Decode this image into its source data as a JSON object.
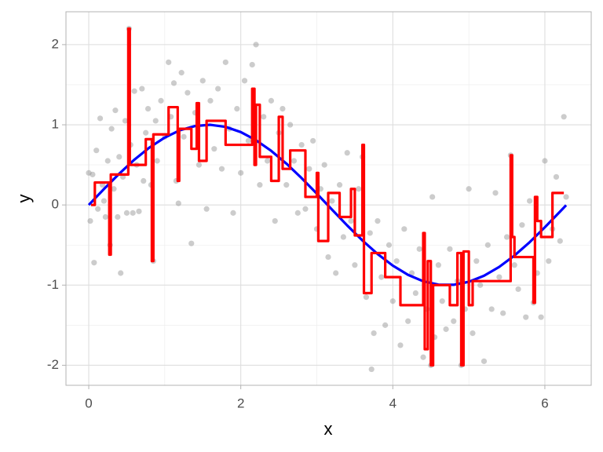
{
  "chart_data": {
    "type": "scatter",
    "x_label": "x",
    "y_label": "y",
    "xlim": [
      -0.3,
      6.61
    ],
    "ylim": [
      -2.25,
      2.41
    ],
    "xticks": [
      0,
      2,
      4,
      6
    ],
    "yticks": [
      -2,
      -1,
      0,
      1,
      2
    ],
    "grid": true,
    "series": [
      {
        "type": "scatter",
        "color": "#808080",
        "x": [
          0.0,
          0.02,
          0.05,
          0.07,
          0.1,
          0.12,
          0.15,
          0.18,
          0.2,
          0.22,
          0.25,
          0.28,
          0.3,
          0.33,
          0.35,
          0.38,
          0.4,
          0.42,
          0.45,
          0.48,
          0.5,
          0.53,
          0.55,
          0.58,
          0.6,
          0.63,
          0.66,
          0.7,
          0.72,
          0.75,
          0.78,
          0.82,
          0.85,
          0.88,
          0.9,
          0.95,
          1.0,
          1.05,
          1.08,
          1.12,
          1.15,
          1.18,
          1.22,
          1.25,
          1.3,
          1.35,
          1.4,
          1.45,
          1.5,
          1.55,
          1.6,
          1.65,
          1.7,
          1.75,
          1.8,
          1.85,
          1.9,
          1.95,
          2.0,
          2.05,
          2.1,
          2.15,
          2.2,
          2.25,
          2.3,
          2.35,
          2.4,
          2.45,
          2.5,
          2.55,
          2.6,
          2.65,
          2.7,
          2.75,
          2.8,
          2.85,
          2.9,
          2.95,
          3.0,
          3.05,
          3.1,
          3.15,
          3.2,
          3.25,
          3.3,
          3.35,
          3.4,
          3.45,
          3.5,
          3.55,
          3.6,
          3.65,
          3.7,
          3.72,
          3.75,
          3.8,
          3.85,
          3.9,
          3.95,
          4.0,
          4.05,
          4.1,
          4.15,
          4.2,
          4.25,
          4.3,
          4.35,
          4.4,
          4.45,
          4.5,
          4.52,
          4.55,
          4.6,
          4.65,
          4.7,
          4.75,
          4.8,
          4.85,
          4.9,
          4.95,
          5.0,
          5.05,
          5.1,
          5.15,
          5.2,
          5.25,
          5.3,
          5.35,
          5.4,
          5.45,
          5.5,
          5.55,
          5.6,
          5.65,
          5.7,
          5.75,
          5.8,
          5.85,
          5.9,
          5.95,
          6.0,
          6.05,
          6.1,
          6.15,
          6.2,
          6.25,
          6.28
        ],
        "values": [
          0.4,
          -0.2,
          0.38,
          -0.72,
          0.68,
          -0.05,
          1.08,
          0.25,
          0.05,
          -0.15,
          0.55,
          -0.5,
          0.95,
          0.2,
          1.18,
          -0.15,
          0.6,
          -0.85,
          0.35,
          1.05,
          -0.1,
          2.2,
          0.75,
          -0.1,
          1.42,
          0.5,
          -0.08,
          1.45,
          0.3,
          0.9,
          1.2,
          0.25,
          -0.7,
          1.05,
          0.55,
          1.3,
          0.85,
          1.78,
          1.1,
          1.52,
          0.3,
          0.02,
          1.65,
          0.85,
          1.4,
          -0.48,
          1.15,
          0.5,
          1.55,
          -0.05,
          1.3,
          0.7,
          1.45,
          0.45,
          1.78,
          0.95,
          -0.1,
          1.2,
          0.4,
          1.55,
          0.8,
          1.75,
          2.0,
          0.25,
          1.1,
          0.55,
          1.3,
          -0.2,
          0.9,
          1.2,
          0.25,
          1.0,
          0.55,
          -0.1,
          0.75,
          -0.05,
          0.45,
          0.8,
          -0.3,
          0.2,
          0.5,
          -0.65,
          0.05,
          -0.85,
          0.25,
          -0.4,
          0.65,
          -0.2,
          -0.75,
          0.2,
          0.6,
          -1.15,
          -0.35,
          -2.05,
          -1.6,
          -0.2,
          -0.9,
          -1.5,
          -0.5,
          -1.2,
          -0.7,
          -1.75,
          -0.3,
          -1.45,
          -0.85,
          -1.1,
          -0.55,
          -1.9,
          -1.3,
          -2.0,
          0.1,
          -1.65,
          -0.75,
          -1.2,
          -1.55,
          -0.55,
          -1.45,
          -0.95,
          -2.0,
          -1.3,
          0.2,
          -1.6,
          -0.7,
          -1.0,
          -1.95,
          -0.5,
          -1.3,
          0.15,
          -0.9,
          -1.35,
          -0.4,
          0.62,
          -0.75,
          -1.05,
          -0.25,
          -1.4,
          0.05,
          -1.22,
          -0.85,
          -1.4,
          0.55,
          -0.7,
          -0.3,
          0.35,
          -0.45,
          1.1,
          0.1
        ]
      },
      {
        "type": "line",
        "color": "#0000ff",
        "x": [
          0,
          0.2,
          0.4,
          0.6,
          0.8,
          1.0,
          1.2,
          1.4,
          1.6,
          1.8,
          2.0,
          2.2,
          2.4,
          2.6,
          2.8,
          3.0,
          3.2,
          3.4,
          3.6,
          3.8,
          4.0,
          4.2,
          4.4,
          4.6,
          4.8,
          5.0,
          5.2,
          5.4,
          5.6,
          5.8,
          6.0,
          6.2,
          6.28
        ],
        "values": [
          0,
          0.199,
          0.389,
          0.565,
          0.717,
          0.841,
          0.932,
          0.985,
          1.0,
          0.974,
          0.909,
          0.808,
          0.675,
          0.516,
          0.335,
          0.141,
          -0.058,
          -0.256,
          -0.443,
          -0.612,
          -0.757,
          -0.872,
          -0.952,
          -0.994,
          -0.996,
          -0.959,
          -0.883,
          -0.773,
          -0.631,
          -0.465,
          -0.279,
          -0.083,
          -0.003
        ]
      },
      {
        "type": "line",
        "color": "#ff0000",
        "x": [
          0.03,
          0.08,
          0.08,
          0.27,
          0.27,
          0.29,
          0.29,
          0.52,
          0.52,
          0.54,
          0.54,
          0.75,
          0.75,
          0.83,
          0.83,
          0.85,
          0.85,
          1.05,
          1.05,
          1.17,
          1.17,
          1.19,
          1.19,
          1.35,
          1.35,
          1.42,
          1.42,
          1.45,
          1.45,
          1.55,
          1.55,
          1.8,
          1.8,
          2.15,
          2.15,
          2.18,
          2.18,
          2.2,
          2.2,
          2.25,
          2.25,
          2.4,
          2.4,
          2.5,
          2.5,
          2.55,
          2.55,
          2.65,
          2.65,
          2.85,
          2.85,
          3.0,
          3.0,
          3.02,
          3.02,
          3.15,
          3.15,
          3.3,
          3.3,
          3.45,
          3.45,
          3.5,
          3.5,
          3.6,
          3.6,
          3.62,
          3.62,
          3.72,
          3.72,
          3.9,
          3.9,
          4.1,
          4.1,
          4.4,
          4.4,
          4.42,
          4.42,
          4.46,
          4.46,
          4.5,
          4.5,
          4.53,
          4.53,
          4.75,
          4.75,
          4.85,
          4.85,
          4.9,
          4.9,
          4.93,
          4.93,
          5.0,
          5.0,
          5.05,
          5.05,
          5.55,
          5.55,
          5.57,
          5.57,
          5.6,
          5.6,
          5.85,
          5.85,
          5.87,
          5.87,
          5.9,
          5.9,
          5.95,
          5.95,
          6.1,
          6.1,
          6.25
        ],
        "values": [
          0.0,
          0.0,
          0.28,
          0.28,
          -0.62,
          -0.62,
          0.38,
          0.38,
          2.2,
          2.2,
          0.5,
          0.5,
          0.82,
          0.82,
          -0.7,
          -0.7,
          0.88,
          0.88,
          1.22,
          1.22,
          0.3,
          0.3,
          0.95,
          0.95,
          0.7,
          0.7,
          1.27,
          1.27,
          0.55,
          0.55,
          1.05,
          1.05,
          0.75,
          0.75,
          1.45,
          1.45,
          0.5,
          0.5,
          1.25,
          1.25,
          0.6,
          0.6,
          0.3,
          0.3,
          1.1,
          1.1,
          0.45,
          0.45,
          0.68,
          0.68,
          0.1,
          0.1,
          0.4,
          0.4,
          -0.45,
          -0.45,
          0.15,
          0.15,
          -0.15,
          -0.15,
          0.2,
          0.2,
          -0.38,
          -0.38,
          0.75,
          0.75,
          -1.1,
          -1.1,
          -0.6,
          -0.6,
          -0.9,
          -0.9,
          -1.25,
          -1.25,
          -0.35,
          -0.35,
          -1.8,
          -1.8,
          -0.7,
          -0.7,
          -2.0,
          -2.0,
          -1.0,
          -1.0,
          -1.25,
          -1.25,
          -0.6,
          -0.6,
          -2.0,
          -2.0,
          -0.58,
          -0.58,
          -1.25,
          -1.25,
          -0.95,
          -0.95,
          0.62,
          0.62,
          -0.4,
          -0.4,
          -0.65,
          -0.65,
          -1.22,
          -1.22,
          0.1,
          0.1,
          -0.2,
          -0.2,
          -0.4,
          -0.4,
          0.15,
          0.15
        ]
      }
    ]
  }
}
